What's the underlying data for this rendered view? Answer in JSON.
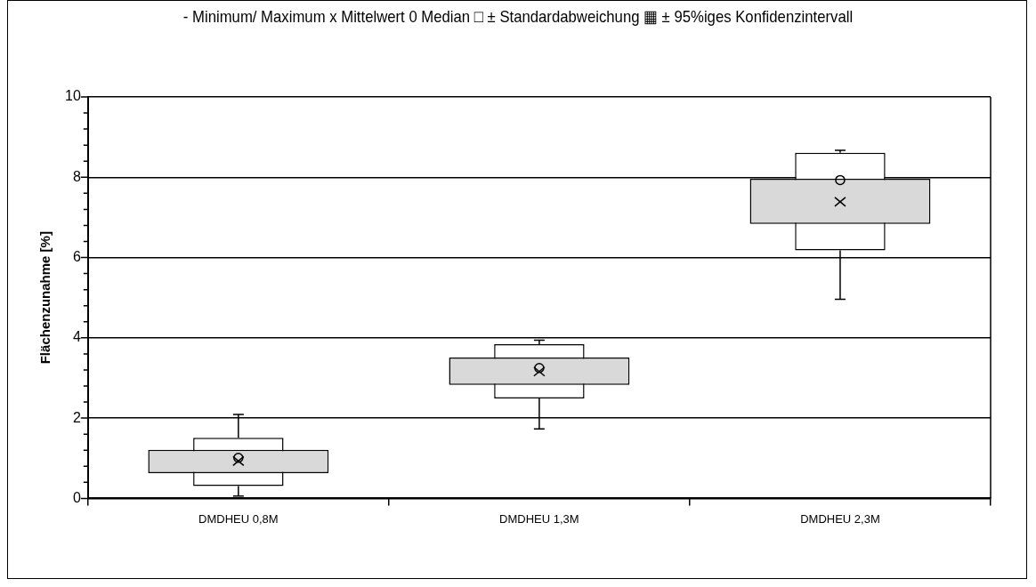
{
  "chart_data": {
    "type": "box",
    "title": "- Minimum/ Maximum  x Mittelwert  0 Median  □ ± Standardabweichung  ▦ ± 95%iges Konfidenzintervall",
    "ylabel": "Flächenzunahme [%]",
    "categories": [
      "DMDHEU 0,8M",
      "DMDHEU 1,3M",
      "DMDHEU 2,3M"
    ],
    "series": [
      {
        "type": "bar",
        "color": "#d9d9d9",
        "base": [
          0.63,
          2.83,
          6.84
        ],
        "values": [
          0.58,
          0.68,
          1.12
        ]
      },
      {
        "color": "#000000",
        "boxes": [
          {
            "low": 0.06,
            "q1": 0.31,
            "median": 1.01,
            "q3": 1.51,
            "high": 2.09,
            "mean": 0.93
          },
          {
            "low": 1.73,
            "q1": 2.49,
            "median": 3.25,
            "q3": 3.84,
            "high": 3.94,
            "mean": 3.16
          },
          {
            "low": 4.96,
            "q1": 6.18,
            "median": 7.93,
            "q3": 8.61,
            "high": 8.67,
            "mean": 7.39
          }
        ]
      }
    ],
    "ylim": [
      0,
      10
    ],
    "yticks": [
      0,
      {
        "value": 0.4,
        "label": null
      },
      {
        "value": 0.8,
        "label": null
      },
      {
        "value": 1.2,
        "label": null
      },
      {
        "value": 1.6,
        "label": null
      },
      2,
      {
        "value": 2.4,
        "label": null
      },
      {
        "value": 2.8,
        "label": null
      },
      {
        "value": 3.2,
        "label": null
      },
      {
        "value": 3.6,
        "label": null
      },
      4,
      {
        "value": 4.4,
        "label": null
      },
      {
        "value": 4.8,
        "label": null
      },
      {
        "value": 5.2,
        "label": null
      },
      {
        "value": 5.6,
        "label": null
      },
      6,
      {
        "value": 6.4,
        "label": null
      },
      {
        "value": 6.8,
        "label": null
      },
      {
        "value": 7.2,
        "label": null
      },
      {
        "value": 7.6,
        "label": null
      },
      8,
      {
        "value": 8.4,
        "label": null
      },
      {
        "value": 8.8,
        "label": null
      },
      {
        "value": 9.2,
        "label": null
      },
      {
        "value": 9.6,
        "label": null
      },
      10
    ],
    "grid": "y",
    "legend": false
  }
}
